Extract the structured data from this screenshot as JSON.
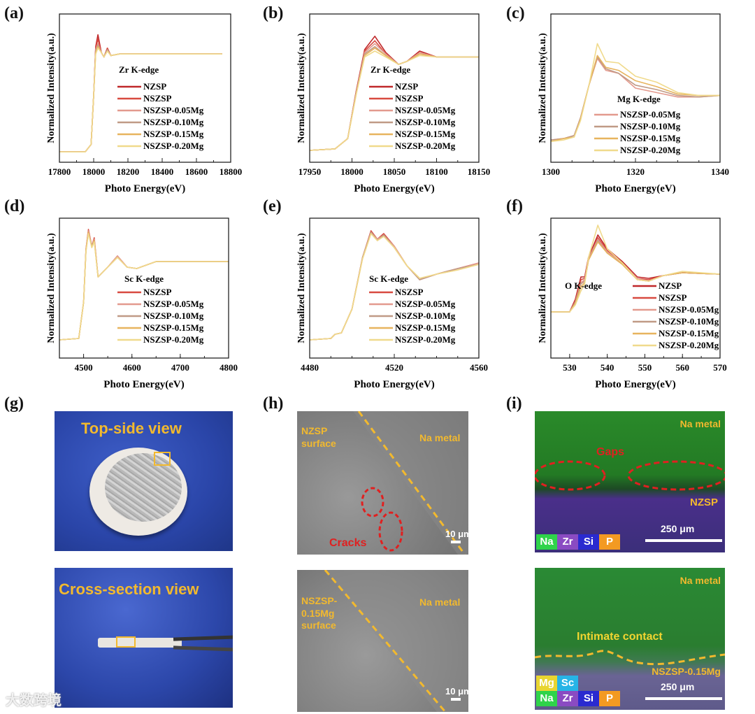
{
  "panel_labels": [
    "(a)",
    "(b)",
    "(c)",
    "(d)",
    "(e)",
    "(f)",
    "(g)",
    "(h)",
    "(i)"
  ],
  "colors": {
    "NZSP": "#c0282a",
    "NSZSP": "#d84a40",
    "NSZSP-0.05Mg": "#e39a8e",
    "NSZSP-0.10Mg": "#c09a86",
    "NSZSP-0.15Mg": "#e7b45e",
    "NSZSP-0.20Mg": "#f0da8c"
  },
  "chart_data": [
    {
      "type": "line",
      "panel": "(a)",
      "legend_title": "Zr K-edge",
      "xlabel": "Photo Energy(eV)",
      "ylabel": "Normalized Intensity(a.u.)",
      "xlim": [
        17800,
        18800
      ],
      "ylim": [
        0,
        1
      ],
      "xticks": [
        17800,
        18000,
        18200,
        18400,
        18600,
        18800
      ],
      "x": [
        17800,
        17950,
        17985,
        18000,
        18012,
        18025,
        18045,
        18060,
        18080,
        18100,
        18150,
        18300,
        18750
      ],
      "series": [
        {
          "name": "NZSP",
          "values": [
            0.07,
            0.07,
            0.12,
            0.45,
            0.78,
            0.86,
            0.74,
            0.71,
            0.77,
            0.72,
            0.73,
            0.73,
            0.73
          ]
        },
        {
          "name": "NSZSP",
          "values": [
            0.07,
            0.07,
            0.12,
            0.45,
            0.77,
            0.83,
            0.74,
            0.71,
            0.77,
            0.72,
            0.73,
            0.73,
            0.73
          ]
        },
        {
          "name": "NSZSP-0.05Mg",
          "values": [
            0.07,
            0.07,
            0.12,
            0.45,
            0.76,
            0.8,
            0.74,
            0.71,
            0.76,
            0.72,
            0.73,
            0.73,
            0.73
          ]
        },
        {
          "name": "NSZSP-0.10Mg",
          "values": [
            0.07,
            0.07,
            0.12,
            0.45,
            0.75,
            0.79,
            0.74,
            0.71,
            0.76,
            0.72,
            0.73,
            0.73,
            0.73
          ]
        },
        {
          "name": "NSZSP-0.15Mg",
          "values": [
            0.07,
            0.07,
            0.12,
            0.45,
            0.74,
            0.78,
            0.74,
            0.71,
            0.75,
            0.72,
            0.73,
            0.73,
            0.73
          ]
        },
        {
          "name": "NSZSP-0.20Mg",
          "values": [
            0.07,
            0.07,
            0.12,
            0.45,
            0.73,
            0.77,
            0.74,
            0.71,
            0.75,
            0.72,
            0.73,
            0.73,
            0.73
          ]
        }
      ]
    },
    {
      "type": "line",
      "panel": "(b)",
      "legend_title": "Zr K-edge",
      "xlabel": "Photo Energy(eV)",
      "ylabel": "Normalized Intensity(a.u.)",
      "xlim": [
        17950,
        18150
      ],
      "ylim": [
        0,
        1
      ],
      "xticks": [
        17950,
        18000,
        18050,
        18100,
        18150
      ],
      "x": [
        17950,
        17980,
        17995,
        18005,
        18015,
        18027,
        18040,
        18055,
        18065,
        18080,
        18100,
        18150
      ],
      "series": [
        {
          "name": "NZSP",
          "values": [
            0.08,
            0.09,
            0.16,
            0.48,
            0.76,
            0.85,
            0.74,
            0.66,
            0.68,
            0.75,
            0.71,
            0.71
          ]
        },
        {
          "name": "NSZSP",
          "values": [
            0.08,
            0.09,
            0.16,
            0.48,
            0.75,
            0.82,
            0.73,
            0.66,
            0.68,
            0.74,
            0.71,
            0.71
          ]
        },
        {
          "name": "NSZSP-0.05Mg",
          "values": [
            0.08,
            0.09,
            0.16,
            0.47,
            0.74,
            0.8,
            0.73,
            0.66,
            0.68,
            0.74,
            0.71,
            0.71
          ]
        },
        {
          "name": "NSZSP-0.10Mg",
          "values": [
            0.08,
            0.09,
            0.16,
            0.47,
            0.73,
            0.78,
            0.72,
            0.66,
            0.68,
            0.73,
            0.71,
            0.71
          ]
        },
        {
          "name": "NSZSP-0.15Mg",
          "values": [
            0.08,
            0.09,
            0.16,
            0.46,
            0.72,
            0.77,
            0.72,
            0.66,
            0.68,
            0.73,
            0.71,
            0.71
          ]
        },
        {
          "name": "NSZSP-0.20Mg",
          "values": [
            0.08,
            0.09,
            0.16,
            0.46,
            0.71,
            0.75,
            0.71,
            0.66,
            0.68,
            0.72,
            0.71,
            0.71
          ]
        }
      ]
    },
    {
      "type": "line",
      "panel": "(c)",
      "legend_title": "Mg K-edge",
      "xlabel": "Photo Energy(eV)",
      "ylabel": "Normalized Intensity(a.u.)",
      "xlim": [
        1300,
        1340
      ],
      "ylim": [
        0,
        1
      ],
      "xticks": [
        1300,
        1320,
        1340
      ],
      "x": [
        1300,
        1303,
        1305.5,
        1307,
        1309,
        1311,
        1313,
        1316,
        1320,
        1325,
        1330,
        1335,
        1340
      ],
      "series": [
        {
          "name": "NSZSP-0.05Mg",
          "values": [
            0.15,
            0.16,
            0.18,
            0.3,
            0.52,
            0.7,
            0.62,
            0.6,
            0.5,
            0.47,
            0.44,
            0.44,
            0.45
          ]
        },
        {
          "name": "NSZSP-0.10Mg",
          "values": [
            0.15,
            0.16,
            0.18,
            0.3,
            0.52,
            0.71,
            0.63,
            0.6,
            0.52,
            0.49,
            0.45,
            0.44,
            0.45
          ]
        },
        {
          "name": "NSZSP-0.15Mg",
          "values": [
            0.14,
            0.16,
            0.17,
            0.29,
            0.52,
            0.72,
            0.64,
            0.62,
            0.55,
            0.51,
            0.46,
            0.45,
            0.45
          ]
        },
        {
          "name": "NSZSP-0.20Mg",
          "values": [
            0.14,
            0.15,
            0.17,
            0.28,
            0.52,
            0.8,
            0.68,
            0.67,
            0.58,
            0.54,
            0.47,
            0.45,
            0.45
          ]
        }
      ]
    },
    {
      "type": "line",
      "panel": "(d)",
      "legend_title": "Sc K-edge",
      "xlabel": "Photo Energy(eV)",
      "ylabel": "Normalized Intensity(a.u.)",
      "xlim": [
        4450,
        4800
      ],
      "ylim": [
        0,
        1
      ],
      "xticks": [
        4500,
        4600,
        4700,
        4800
      ],
      "x": [
        4450,
        4490,
        4500,
        4505,
        4510,
        4517,
        4522,
        4530,
        4550,
        4570,
        4590,
        4610,
        4650,
        4800
      ],
      "series": [
        {
          "name": "NSZSP",
          "values": [
            0.13,
            0.14,
            0.4,
            0.78,
            0.92,
            0.8,
            0.86,
            0.58,
            0.65,
            0.73,
            0.65,
            0.64,
            0.69,
            0.69
          ]
        },
        {
          "name": "NSZSP-0.05Mg",
          "values": [
            0.13,
            0.14,
            0.4,
            0.78,
            0.91,
            0.8,
            0.85,
            0.58,
            0.65,
            0.73,
            0.65,
            0.64,
            0.69,
            0.69
          ]
        },
        {
          "name": "NSZSP-0.10Mg",
          "values": [
            0.13,
            0.14,
            0.4,
            0.77,
            0.9,
            0.8,
            0.84,
            0.58,
            0.65,
            0.72,
            0.65,
            0.64,
            0.69,
            0.69
          ]
        },
        {
          "name": "NSZSP-0.15Mg",
          "values": [
            0.13,
            0.14,
            0.4,
            0.77,
            0.9,
            0.79,
            0.84,
            0.58,
            0.65,
            0.72,
            0.65,
            0.64,
            0.69,
            0.69
          ]
        },
        {
          "name": "NSZSP-0.20Mg",
          "values": [
            0.13,
            0.14,
            0.4,
            0.76,
            0.89,
            0.79,
            0.83,
            0.58,
            0.65,
            0.72,
            0.65,
            0.64,
            0.69,
            0.69
          ]
        }
      ]
    },
    {
      "type": "line",
      "panel": "(e)",
      "legend_title": "Sc K-edge",
      "xlabel": "Photo Energy(eV)",
      "ylabel": "Normalized Intensity(a.u.)",
      "xlim": [
        4480,
        4560
      ],
      "ylim": [
        0,
        1
      ],
      "xticks": [
        4480,
        4520,
        4560
      ],
      "x": [
        4480,
        4490,
        4492,
        4495,
        4500,
        4505,
        4509,
        4512,
        4515,
        4520,
        4526,
        4532,
        4540,
        4550,
        4560
      ],
      "series": [
        {
          "name": "NSZSP",
          "values": [
            0.13,
            0.14,
            0.17,
            0.18,
            0.35,
            0.72,
            0.91,
            0.85,
            0.89,
            0.8,
            0.66,
            0.56,
            0.6,
            0.64,
            0.68
          ]
        },
        {
          "name": "NSZSP-0.05Mg",
          "values": [
            0.13,
            0.14,
            0.17,
            0.18,
            0.35,
            0.72,
            0.9,
            0.85,
            0.88,
            0.8,
            0.66,
            0.56,
            0.6,
            0.64,
            0.68
          ]
        },
        {
          "name": "NSZSP-0.10Mg",
          "values": [
            0.13,
            0.14,
            0.17,
            0.18,
            0.35,
            0.72,
            0.9,
            0.84,
            0.88,
            0.79,
            0.66,
            0.56,
            0.6,
            0.64,
            0.67
          ]
        },
        {
          "name": "NSZSP-0.15Mg",
          "values": [
            0.13,
            0.14,
            0.17,
            0.18,
            0.35,
            0.71,
            0.89,
            0.84,
            0.87,
            0.79,
            0.66,
            0.57,
            0.6,
            0.63,
            0.67
          ]
        },
        {
          "name": "NSZSP-0.20Mg",
          "values": [
            0.13,
            0.14,
            0.17,
            0.18,
            0.35,
            0.71,
            0.89,
            0.84,
            0.87,
            0.79,
            0.66,
            0.57,
            0.6,
            0.63,
            0.67
          ]
        }
      ]
    },
    {
      "type": "line",
      "panel": "(f)",
      "legend_title": "O K-edge",
      "xlabel": "Photo Energy(eV)",
      "ylabel": "Normalized Intensity(a.u.)",
      "xlim": [
        525,
        570
      ],
      "ylim": [
        0,
        1
      ],
      "xticks": [
        530,
        540,
        550,
        560,
        570
      ],
      "x": [
        525,
        530,
        531.5,
        533,
        534,
        535,
        537.5,
        540,
        544,
        548,
        551,
        555,
        560,
        570
      ],
      "series": [
        {
          "name": "NZSP",
          "values": [
            0.33,
            0.33,
            0.42,
            0.58,
            0.58,
            0.72,
            0.88,
            0.78,
            0.69,
            0.58,
            0.57,
            0.59,
            0.61,
            0.6
          ]
        },
        {
          "name": "NSZSP",
          "values": [
            0.33,
            0.33,
            0.41,
            0.56,
            0.57,
            0.71,
            0.86,
            0.77,
            0.68,
            0.57,
            0.56,
            0.59,
            0.61,
            0.6
          ]
        },
        {
          "name": "NSZSP-0.05Mg",
          "values": [
            0.33,
            0.33,
            0.4,
            0.54,
            0.56,
            0.71,
            0.85,
            0.76,
            0.68,
            0.57,
            0.55,
            0.59,
            0.61,
            0.6
          ]
        },
        {
          "name": "NSZSP-0.10Mg",
          "values": [
            0.33,
            0.33,
            0.4,
            0.53,
            0.55,
            0.7,
            0.84,
            0.75,
            0.67,
            0.56,
            0.55,
            0.59,
            0.61,
            0.6
          ]
        },
        {
          "name": "NSZSP-0.15Mg",
          "values": [
            0.33,
            0.33,
            0.39,
            0.51,
            0.54,
            0.7,
            0.83,
            0.75,
            0.67,
            0.56,
            0.55,
            0.59,
            0.61,
            0.6
          ]
        },
        {
          "name": "NSZSP-0.20Mg",
          "values": [
            0.33,
            0.33,
            0.38,
            0.48,
            0.53,
            0.72,
            0.95,
            0.78,
            0.68,
            0.56,
            0.55,
            0.59,
            0.62,
            0.6
          ]
        }
      ]
    }
  ],
  "photos": {
    "g_top": "Top-side view",
    "g_bottom": "Cross-section view",
    "h_top": {
      "left": "NZSP\nsurface",
      "right": "Na metal",
      "cracks": "Cracks",
      "scale": "10 μm"
    },
    "h_bottom": {
      "left": "NSZSP-\n0.15Mg\nsurface",
      "right": "Na metal",
      "scale": "10 μm"
    },
    "i_top": {
      "metal": "Na metal",
      "gaps": "Gaps",
      "sample": "NZSP",
      "scale": "250 μm",
      "legend": [
        "Na",
        "Zr",
        "Si",
        "P"
      ]
    },
    "i_bottom": {
      "metal": "Na metal",
      "contact": "Intimate contact",
      "sample": "NSZSP-0.15Mg",
      "scale": "250 μm",
      "legend_top": [
        "Mg",
        "Sc"
      ],
      "legend": [
        "Na",
        "Zr",
        "Si",
        "P"
      ]
    },
    "element_colors": {
      "Na": "#2fd34a",
      "Zr": "#8a4bc2",
      "Si": "#2a2ad0",
      "P": "#f39a22",
      "Mg": "#e8d531",
      "Sc": "#27b4e6"
    }
  },
  "watermark": "大数跨境"
}
